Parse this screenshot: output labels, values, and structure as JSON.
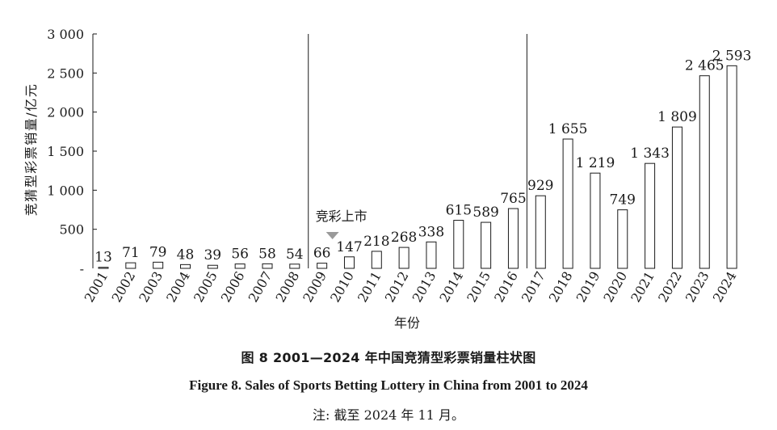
{
  "chart_data": {
    "type": "bar",
    "categories": [
      "2001",
      "2002",
      "2003",
      "2004",
      "2005",
      "2006",
      "2007",
      "2008",
      "2009",
      "2010",
      "2011",
      "2012",
      "2013",
      "2014",
      "2015",
      "2016",
      "2017",
      "2018",
      "2019",
      "2020",
      "2021",
      "2022",
      "2023",
      "2024"
    ],
    "values": [
      13,
      71,
      79,
      48,
      39,
      56,
      58,
      54,
      66,
      147,
      218,
      268,
      338,
      615,
      589,
      765,
      929,
      1655,
      1219,
      749,
      1343,
      1809,
      2465,
      2593
    ],
    "value_labels": [
      "13",
      "71",
      "79",
      "48",
      "39",
      "56",
      "58",
      "54",
      "66",
      "147",
      "218",
      "268",
      "338",
      "615",
      "589",
      "765",
      "929",
      "1 655",
      "1 219",
      "749",
      "1 343",
      "1 809",
      "2 465",
      "2 593"
    ],
    "ylabel": "竞猜型彩票销量/亿元",
    "xlabel": "年份",
    "ylim": [
      0,
      3000
    ],
    "yticks": [
      0,
      500,
      1000,
      1500,
      2000,
      2500,
      3000
    ],
    "ytick_labels": [
      "-",
      "500",
      "1 000",
      "1 500",
      "2 000",
      "2 500",
      "3 000"
    ],
    "grid": false,
    "vertical_lines_after": [
      "2008",
      "2016"
    ],
    "annotation": {
      "text": "竞彩上市",
      "category": "2009"
    }
  },
  "captions": {
    "cn": "图 8   2001—2024 年中国竞猜型彩票销量柱状图",
    "en": "Figure 8.    Sales of Sports Betting Lottery in China from 2001 to 2024",
    "note": "注: 截至 2024 年 11 月。"
  }
}
